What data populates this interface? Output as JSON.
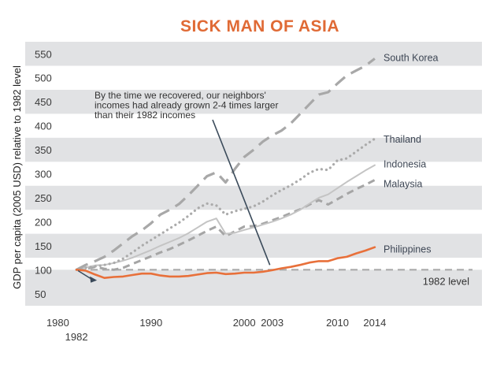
{
  "chart_data": {
    "type": "line",
    "title": "SICK MAN OF ASIA",
    "ylabel": "GDP per capita (2005 USD) relative to 1982 level",
    "xlabel": "",
    "xlim": [
      1976.5,
      2025.5
    ],
    "ylim": [
      25,
      580
    ],
    "y_ticks": [
      50,
      100,
      150,
      200,
      250,
      300,
      350,
      400,
      450,
      500,
      550
    ],
    "x_ticks_top": [
      {
        "value": 1980,
        "label": "1980"
      },
      {
        "value": 1990,
        "label": "1990"
      },
      {
        "value": 2000,
        "label": "2000"
      },
      {
        "value": 2003,
        "label": "2003"
      },
      {
        "value": 2010,
        "label": "2010"
      },
      {
        "value": 2014,
        "label": "2014"
      }
    ],
    "x_ticks_bottom": [
      {
        "value": 1982,
        "label": "1982"
      }
    ],
    "reference_line": {
      "value": 100,
      "label": "1982 level"
    },
    "annotation": {
      "lines": [
        "By the time we recovered, our neighbors'",
        "incomes had already grown 2-4 times larger",
        "than their 1982 incomes"
      ],
      "points_to": {
        "x": 2003,
        "y": 100
      }
    },
    "series": [
      {
        "name": "South Korea",
        "label": "South Korea",
        "color": "#a8a8a8",
        "style": "longdash",
        "x": [
          1982,
          1983,
          1984,
          1985,
          1986,
          1987,
          1988,
          1989,
          1990,
          1991,
          1992,
          1993,
          1994,
          1995,
          1996,
          1997,
          1998,
          1999,
          2000,
          2001,
          2002,
          2003,
          2004,
          2005,
          2006,
          2007,
          2008,
          2009,
          2010,
          2011,
          2012,
          2013,
          2014
        ],
        "values": [
          100,
          110,
          118,
          127,
          140,
          155,
          170,
          182,
          197,
          215,
          225,
          237,
          255,
          275,
          295,
          303,
          282,
          310,
          335,
          350,
          367,
          380,
          390,
          405,
          425,
          445,
          465,
          470,
          488,
          505,
          515,
          525,
          540
        ]
      },
      {
        "name": "Thailand",
        "label": "Thailand",
        "color": "#ababab",
        "style": "dotted",
        "x": [
          1982,
          1983,
          1984,
          1985,
          1986,
          1987,
          1988,
          1989,
          1990,
          1991,
          1992,
          1993,
          1994,
          1995,
          1996,
          1997,
          1998,
          1999,
          2000,
          2001,
          2002,
          2003,
          2004,
          2005,
          2006,
          2007,
          2008,
          2009,
          2010,
          2011,
          2012,
          2013,
          2014
        ],
        "values": [
          100,
          104,
          107,
          110,
          114,
          123,
          136,
          150,
          162,
          174,
          186,
          198,
          212,
          228,
          238,
          234,
          215,
          222,
          227,
          232,
          242,
          255,
          266,
          276,
          288,
          302,
          310,
          308,
          328,
          332,
          346,
          360,
          373
        ]
      },
      {
        "name": "Indonesia",
        "label": "Indonesia",
        "color": "#c4c4c4",
        "style": "solid",
        "x": [
          1982,
          1983,
          1984,
          1985,
          1986,
          1987,
          1988,
          1989,
          1990,
          1991,
          1992,
          1993,
          1994,
          1995,
          1996,
          1997,
          1998,
          1999,
          2000,
          2001,
          2002,
          2003,
          2004,
          2005,
          2006,
          2007,
          2008,
          2009,
          2010,
          2011,
          2012,
          2013,
          2014
        ],
        "values": [
          100,
          105,
          109,
          110,
          114,
          119,
          125,
          133,
          141,
          150,
          158,
          166,
          176,
          188,
          200,
          207,
          175,
          177,
          183,
          188,
          194,
          200,
          207,
          215,
          225,
          238,
          250,
          257,
          270,
          283,
          295,
          307,
          318
        ]
      },
      {
        "name": "Malaysia",
        "label": "Malaysia",
        "color": "#a5a5a5",
        "style": "dashed",
        "x": [
          1982,
          1983,
          1984,
          1985,
          1986,
          1987,
          1988,
          1989,
          1990,
          1991,
          1992,
          1993,
          1994,
          1995,
          1996,
          1997,
          1998,
          1999,
          2000,
          2001,
          2002,
          2003,
          2004,
          2005,
          2006,
          2007,
          2008,
          2009,
          2010,
          2011,
          2012,
          2013,
          2014
        ],
        "values": [
          100,
          102,
          106,
          102,
          100,
          104,
          112,
          120,
          128,
          136,
          143,
          152,
          161,
          171,
          181,
          190,
          170,
          180,
          190,
          191,
          196,
          203,
          210,
          218,
          226,
          236,
          245,
          236,
          247,
          258,
          268,
          277,
          287
        ]
      },
      {
        "name": "Philippines",
        "label": "Philippines",
        "color": "#e8703a",
        "style": "solid",
        "x": [
          1982,
          1983,
          1984,
          1985,
          1986,
          1987,
          1988,
          1989,
          1990,
          1991,
          1992,
          1993,
          1994,
          1995,
          1996,
          1997,
          1998,
          1999,
          2000,
          2001,
          2002,
          2003,
          2004,
          2005,
          2006,
          2007,
          2008,
          2009,
          2010,
          2011,
          2012,
          2013,
          2014
        ],
        "values": [
          100,
          98,
          90,
          83,
          85,
          86,
          89,
          92,
          92,
          88,
          86,
          86,
          87,
          90,
          93,
          94,
          91,
          92,
          94,
          94,
          96,
          99,
          103,
          106,
          110,
          115,
          118,
          118,
          124,
          127,
          134,
          140,
          147
        ]
      }
    ]
  },
  "colors": {
    "title": "#e06a35",
    "band": "#e1e2e4",
    "reference": "#aaaaaa",
    "annotation_arrow": "#3a4a5a"
  }
}
